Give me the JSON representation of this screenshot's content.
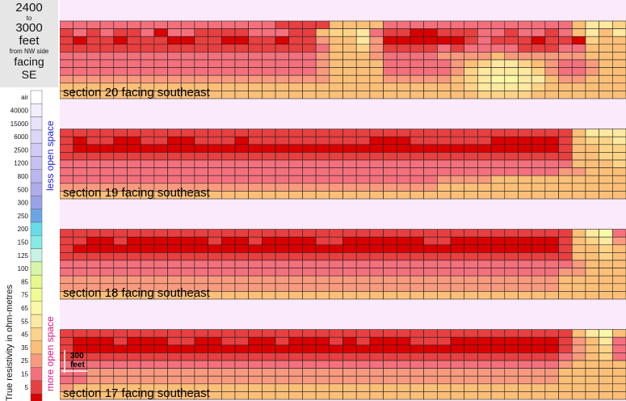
{
  "header": {
    "line1": "2400",
    "line2": "to",
    "line3": "3000",
    "line4": "feet",
    "line5": "from NW side",
    "line6": "facing",
    "line7": "SE"
  },
  "legend": {
    "title": "True resistivity in ohm-metres",
    "less_label": "less open space",
    "more_label": "more open space",
    "scale_label_top": "300",
    "scale_label_bottom": "feet",
    "entries": [
      {
        "label": "air",
        "color": "#ffffff"
      },
      {
        "label": "40000",
        "color": "#f3eefe"
      },
      {
        "label": "15000",
        "color": "#e8e2fb"
      },
      {
        "label": "6000",
        "color": "#ddd6f8"
      },
      {
        "label": "2500",
        "color": "#d2cbf5"
      },
      {
        "label": "1200",
        "color": "#c7c0f2"
      },
      {
        "label": "800",
        "color": "#bbb6ef"
      },
      {
        "label": "500",
        "color": "#aeaceb"
      },
      {
        "label": "300",
        "color": "#9aa2e7"
      },
      {
        "label": "250",
        "color": "#6aa6e6"
      },
      {
        "label": "200",
        "color": "#66dde9"
      },
      {
        "label": "150",
        "color": "#86eae6"
      },
      {
        "label": "125",
        "color": "#c6f3e3"
      },
      {
        "label": "100",
        "color": "#d8f6a8"
      },
      {
        "label": "85",
        "color": "#e7f98a"
      },
      {
        "label": "75",
        "color": "#f1fb93"
      },
      {
        "label": "65",
        "color": "#fbf8a6"
      },
      {
        "label": "55",
        "color": "#fde9a0"
      },
      {
        "label": "45",
        "color": "#fdd487"
      },
      {
        "label": "35",
        "color": "#fbbf78"
      },
      {
        "label": "25",
        "color": "#f99a7e"
      },
      {
        "label": "15",
        "color": "#f5707d"
      },
      {
        "label": "5",
        "color": "#e83f40"
      },
      {
        "label": "",
        "color": "#d90000"
      }
    ]
  },
  "sections": [
    {
      "label": "section 20 facing southeast"
    },
    {
      "label": "section 19 facing southeast"
    },
    {
      "label": "section 18 facing southeast"
    },
    {
      "label": "section 17 facing southeast"
    }
  ],
  "chart_data": {
    "type": "heatmap",
    "palette": [
      "#fbf8a6",
      "#fde9a0",
      "#fdd487",
      "#fbbf78",
      "#f99a7e",
      "#f5707d",
      "#e83f40",
      "#d90000"
    ],
    "note_palette_order": "index 0 = 65 ohm-m (pale yellow) ... index 7 = below 5 ohm-m (dark red)",
    "sections": [
      {
        "name": "section 20 facing southeast",
        "rows": [
          "555555555555555566663333555555555555553112",
          "656566575566665556632215667766655655653131",
          "676676667766776676643314777777656667667233",
          "666666666666666666653324666656555566655333",
          "555555555555555555543334555544443444444333",
          "555555555555555555543333555554321123455433",
          "555555555555555555543333555554211112455433",
          "444444444444444444443333444443210011344333",
          "333333333333333333333333333333211112333333",
          "333333333333333333333333333333322223333333"
        ]
      },
      {
        "name": "section 19 facing southeast",
        "rows": [
          "666666666666666666666666666666666666663111",
          "676677667766676666666667776666667777763221",
          "677777777777777777777777777777777777763322",
          "666666666666666666666666666666666666663322",
          "555555555555555555555555555555555555553332",
          "555555555555555555555555555555555555544333",
          "555555555555555555555555555544443333333333",
          "444444444444444444444444444433333333333333",
          "333333333333333333333333333333333333333333"
        ]
      },
      {
        "name": "section 18 facing southeast",
        "rows": [
          "666666666666666666666666666666666666663105",
          "667767777776776777766777777667777777763214",
          "677777777777777777777777777777777777763323",
          "666666666666666666666666666666666666663323",
          "555555555555555555555555555555555555554333",
          "555555555555555555555555555555555555544333",
          "444444444444444444444444444444444444433333",
          "444444444444444444444444444444444444433333",
          "333333333333333333333333333333333333333333"
        ]
      },
      {
        "name": "section 17 facing southeast",
        "rows": [
          "666666666666666666666666666666666666663103",
          "677767776677667767776767776667777777764315",
          "677777777777777777777777777777777777764325",
          "666666666666666666666666666666666666654325",
          "555555555555555555555555555555555555543333",
          "554444444444444444444444444444444444433333",
          "554444444444444444444444444444444444433333",
          "433333333333333333333333333333333333333333",
          "333333333333333333333333333333333333333333"
        ]
      }
    ]
  }
}
